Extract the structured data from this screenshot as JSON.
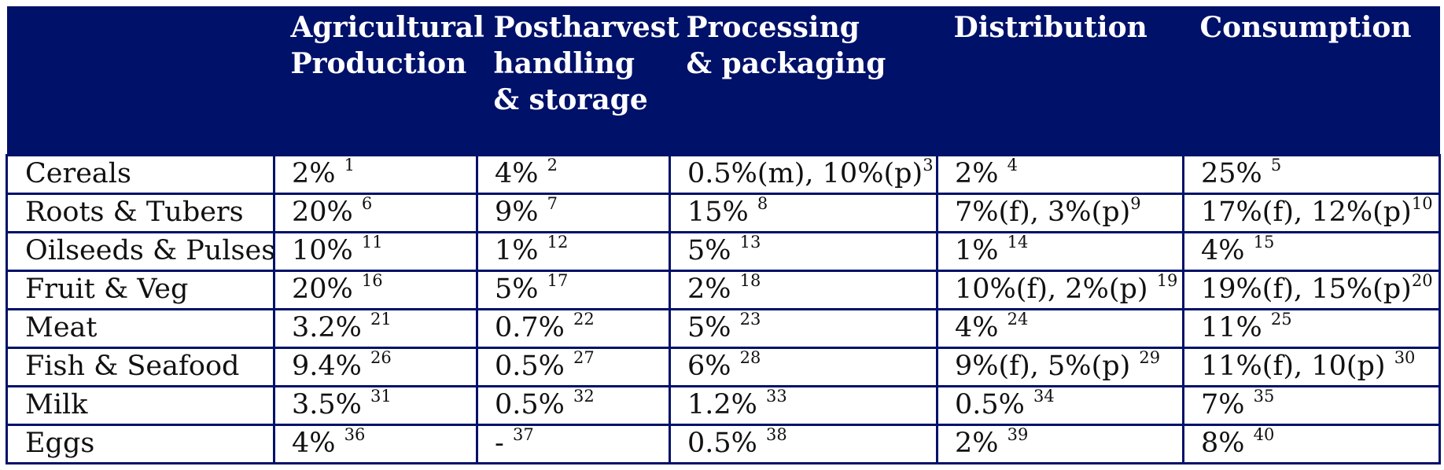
{
  "table": {
    "headers": [
      "",
      "Agricultural\nProduction",
      "Postharvest\nhandling\n& storage",
      "Processing\n& packaging",
      "Distribution",
      "Consumption"
    ],
    "rows": [
      {
        "label": "Cereals",
        "cells": [
          {
            "value": "2% ",
            "ref": "1"
          },
          {
            "value": "4% ",
            "ref": "2"
          },
          {
            "value": "0.5%(m), 10%(p)",
            "ref": "3"
          },
          {
            "value": "2% ",
            "ref": "4"
          },
          {
            "value": "25% ",
            "ref": "5"
          }
        ]
      },
      {
        "label": "Roots & Tubers",
        "cells": [
          {
            "value": "20% ",
            "ref": "6"
          },
          {
            "value": "9% ",
            "ref": "7"
          },
          {
            "value": "15% ",
            "ref": "8"
          },
          {
            "value": "7%(f), 3%(p)",
            "ref": "9"
          },
          {
            "value": "17%(f), 12%(p)",
            "ref": "10"
          }
        ]
      },
      {
        "label": "Oilseeds & Pulses",
        "cells": [
          {
            "value": "10% ",
            "ref": "11"
          },
          {
            "value": "1% ",
            "ref": "12"
          },
          {
            "value": "5% ",
            "ref": "13"
          },
          {
            "value": "1% ",
            "ref": "14"
          },
          {
            "value": "4% ",
            "ref": "15"
          }
        ]
      },
      {
        "label": "Fruit & Veg",
        "cells": [
          {
            "value": "20% ",
            "ref": "16"
          },
          {
            "value": "5% ",
            "ref": "17"
          },
          {
            "value": "2% ",
            "ref": "18"
          },
          {
            "value": "10%(f), 2%(p) ",
            "ref": "19"
          },
          {
            "value": "19%(f), 15%(p)",
            "ref": "20"
          }
        ]
      },
      {
        "label": "Meat",
        "cells": [
          {
            "value": "3.2% ",
            "ref": "21"
          },
          {
            "value": "0.7% ",
            "ref": "22"
          },
          {
            "value": "5% ",
            "ref": "23"
          },
          {
            "value": "4% ",
            "ref": "24"
          },
          {
            "value": "11% ",
            "ref": "25"
          }
        ]
      },
      {
        "label": "Fish & Seafood",
        "cells": [
          {
            "value": "9.4% ",
            "ref": "26"
          },
          {
            "value": "0.5% ",
            "ref": "27"
          },
          {
            "value": "6% ",
            "ref": "28"
          },
          {
            "value": "9%(f), 5%(p) ",
            "ref": "29"
          },
          {
            "value": "11%(f), 10(p) ",
            "ref": "30"
          }
        ]
      },
      {
        "label": "Milk",
        "cells": [
          {
            "value": "3.5% ",
            "ref": "31"
          },
          {
            "value": "0.5% ",
            "ref": "32"
          },
          {
            "value": "1.2% ",
            "ref": "33"
          },
          {
            "value": "0.5% ",
            "ref": "34"
          },
          {
            "value": "7% ",
            "ref": "35"
          }
        ]
      },
      {
        "label": "Eggs",
        "cells": [
          {
            "value": "4% ",
            "ref": "36"
          },
          {
            "value": "- ",
            "ref": "37"
          },
          {
            "value": "0.5% ",
            "ref": "38"
          },
          {
            "value": "2% ",
            "ref": "39"
          },
          {
            "value": "8% ",
            "ref": "40"
          }
        ]
      }
    ]
  },
  "colors": {
    "header_bg": "#001169",
    "header_text": "#ffffff",
    "border": "#001169"
  }
}
